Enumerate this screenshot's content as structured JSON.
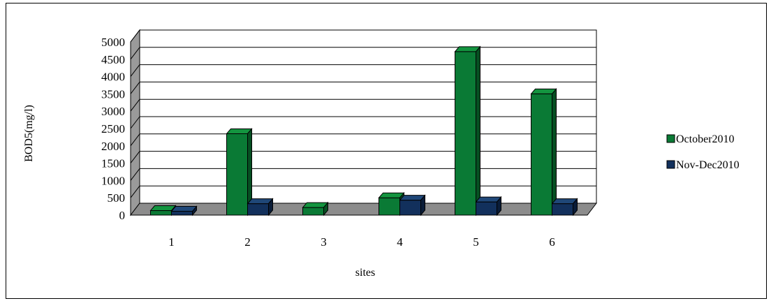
{
  "chart_data": {
    "type": "bar",
    "style": "3d-clustered-column",
    "categories": [
      "1",
      "2",
      "3",
      "4",
      "5",
      "6"
    ],
    "series": [
      {
        "name": "October2010",
        "values": [
          130,
          2350,
          220,
          500,
          4720,
          3500
        ]
      },
      {
        "name": "Nov-Dec2010",
        "values": [
          110,
          330,
          null,
          430,
          380,
          330
        ]
      }
    ],
    "xlabel": "sites",
    "ylabel": "BOD5(mg/l)",
    "ylim": [
      0,
      5000
    ],
    "yticks": [
      "0",
      "500",
      "1000",
      "1500",
      "2000",
      "2500",
      "3000",
      "3500",
      "4000",
      "4500",
      "5000"
    ],
    "grid": true,
    "legend_position": "right"
  },
  "colors": {
    "series_front": [
      "#0a7a35",
      "#12305c"
    ],
    "series_top": [
      "#13943f",
      "#1f4778"
    ],
    "series_side": [
      "#064f22",
      "#0a1c38"
    ],
    "floor": "#8c8c8c",
    "wall": "#ffffff",
    "grid": "#000000"
  }
}
